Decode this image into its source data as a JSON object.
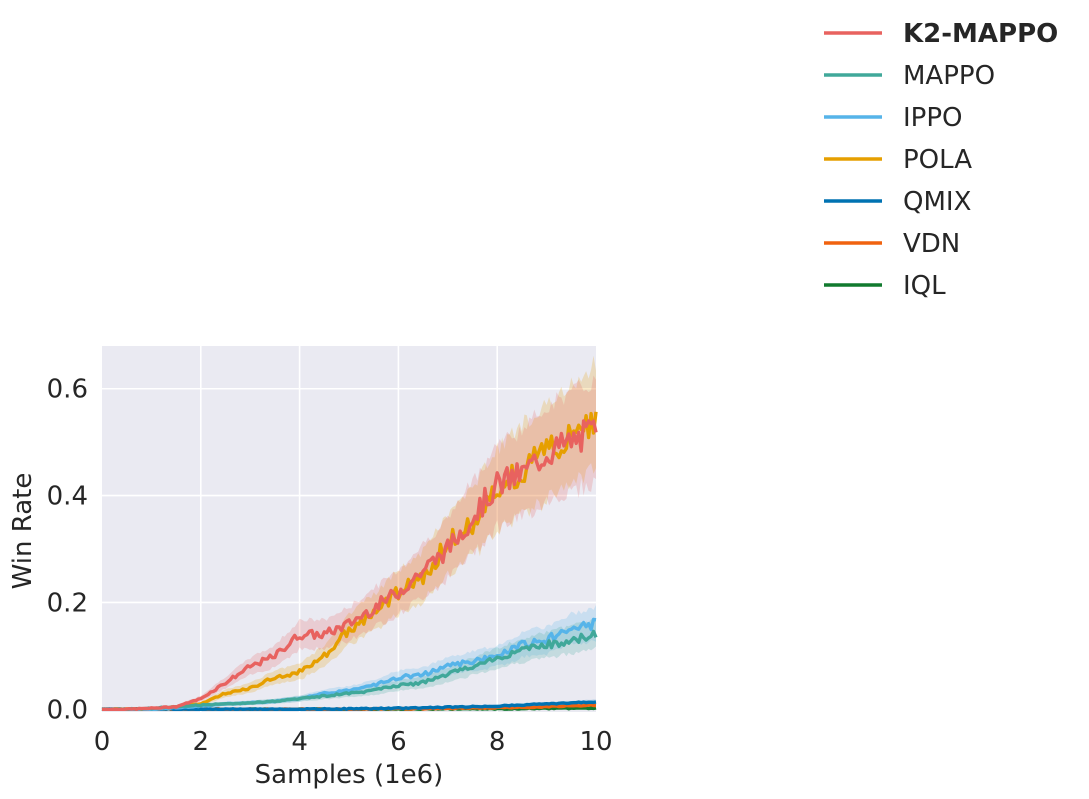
{
  "chart_data": {
    "type": "line",
    "title": "",
    "xlabel": "Samples (1e6)",
    "ylabel": "Win Rate",
    "xlim": [
      0,
      10
    ],
    "ylim": [
      -0.005,
      0.68
    ],
    "xticks": [
      0,
      2,
      4,
      6,
      8,
      10
    ],
    "xtick_labels": [
      "0",
      "2",
      "4",
      "6",
      "8",
      "10"
    ],
    "yticks": [
      0.0,
      0.2,
      0.4,
      0.6
    ],
    "ytick_labels": [
      "0.0",
      "0.2",
      "0.4",
      "0.6"
    ],
    "grid": true,
    "background": "#eaeaf2",
    "legend_position": "top-right, outside plot",
    "series": [
      {
        "name": "K2-MAPPO",
        "color": "#e8625f",
        "bold_label": true,
        "x": [
          0,
          0.5,
          1,
          1.5,
          2,
          2.5,
          3,
          3.5,
          4,
          4.5,
          5,
          5.5,
          6,
          6.5,
          7,
          7.5,
          8,
          8.5,
          9,
          9.5,
          10
        ],
        "y": [
          0.0,
          0.0,
          0.002,
          0.005,
          0.02,
          0.05,
          0.08,
          0.1,
          0.14,
          0.14,
          0.16,
          0.19,
          0.22,
          0.26,
          0.3,
          0.36,
          0.42,
          0.44,
          0.48,
          0.5,
          0.52
        ]
      },
      {
        "name": "MAPPO",
        "color": "#40a89a",
        "x": [
          0,
          0.5,
          1,
          1.5,
          2,
          2.5,
          3,
          3.5,
          4,
          4.5,
          5,
          5.5,
          6,
          6.5,
          7,
          7.5,
          8,
          8.5,
          9,
          9.5,
          10
        ],
        "y": [
          0.0,
          0.0,
          0.002,
          0.005,
          0.008,
          0.01,
          0.012,
          0.015,
          0.02,
          0.025,
          0.03,
          0.035,
          0.045,
          0.05,
          0.065,
          0.08,
          0.095,
          0.11,
          0.12,
          0.13,
          0.14
        ]
      },
      {
        "name": "IPPO",
        "color": "#56b4e9",
        "x": [
          0,
          0.5,
          1,
          1.5,
          2,
          2.5,
          3,
          3.5,
          4,
          4.5,
          5,
          5.5,
          6,
          6.5,
          7,
          7.5,
          8,
          8.5,
          9,
          9.5,
          10
        ],
        "y": [
          0.0,
          0.0,
          0.0,
          0.003,
          0.006,
          0.01,
          0.012,
          0.015,
          0.02,
          0.03,
          0.035,
          0.045,
          0.06,
          0.065,
          0.08,
          0.09,
          0.1,
          0.12,
          0.13,
          0.15,
          0.16
        ]
      },
      {
        "name": "POLA",
        "color": "#e69f00",
        "x": [
          0,
          0.5,
          1,
          1.5,
          2,
          2.5,
          3,
          3.5,
          4,
          4.5,
          5,
          5.5,
          6,
          6.5,
          7,
          7.5,
          8,
          8.5,
          9,
          9.5,
          10
        ],
        "y": [
          0.0,
          0.0,
          0.0,
          0.005,
          0.01,
          0.03,
          0.04,
          0.06,
          0.07,
          0.1,
          0.15,
          0.18,
          0.22,
          0.25,
          0.31,
          0.35,
          0.41,
          0.45,
          0.48,
          0.51,
          0.55
        ]
      },
      {
        "name": "QMIX",
        "color": "#0072b2",
        "x": [
          0,
          1,
          2,
          3,
          4,
          5,
          6,
          7,
          8,
          9,
          10
        ],
        "y": [
          0.0,
          0.0,
          0.0,
          0.0,
          0.0,
          0.001,
          0.002,
          0.004,
          0.006,
          0.01,
          0.014
        ]
      },
      {
        "name": "VDN",
        "color": "#f0620f",
        "x": [
          0,
          1,
          2,
          3,
          4,
          5,
          6,
          7,
          8,
          9,
          10
        ],
        "y": [
          0.0,
          0.0,
          0.0,
          0.0,
          0.0,
          0.0,
          0.001,
          0.002,
          0.003,
          0.005,
          0.008
        ]
      },
      {
        "name": "IQL",
        "color": "#117a2e",
        "x": [
          0,
          1,
          2,
          3,
          4,
          5,
          6,
          7,
          8,
          9,
          10
        ],
        "y": [
          0.0,
          0.0,
          0.0,
          0.0,
          0.0,
          0.0,
          0.0,
          0.001,
          0.001,
          0.002,
          0.002
        ]
      }
    ]
  }
}
